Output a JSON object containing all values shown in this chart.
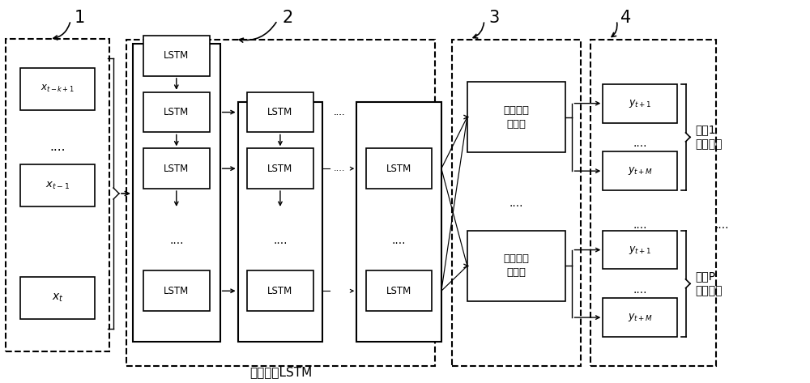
{
  "bg_color": "#ffffff",
  "box_color": "#ffffff",
  "box_edge": "#000000",
  "dash_edge": "#000000",
  "text_color": "#000000",
  "fc_label": "全连接神\n经网络",
  "bottom_label": "多层递减LSTM",
  "pos1_label": "位置1\n壁温输出",
  "posp_label": "位置P\n壁温输出"
}
